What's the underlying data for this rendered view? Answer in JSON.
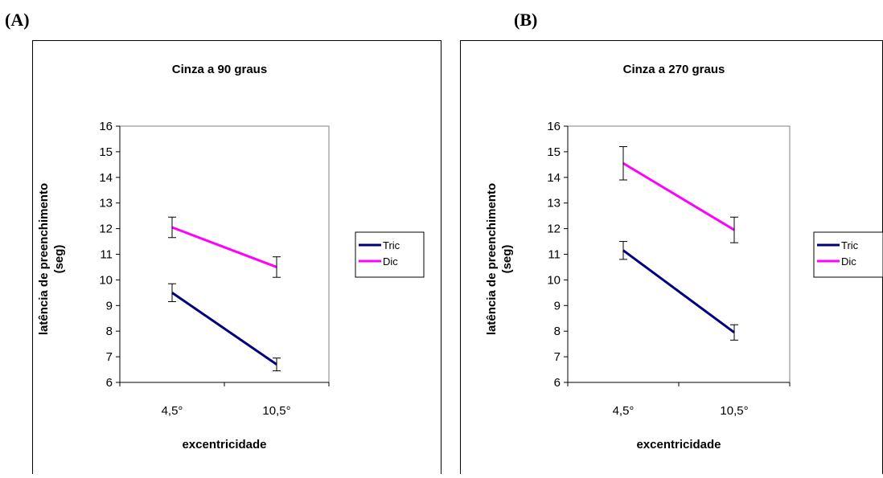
{
  "panels": [
    {
      "letter": "(A)"
    },
    {
      "letter": "(B)"
    }
  ],
  "chart_data": [
    {
      "type": "line",
      "title": "Cinza a 90 graus",
      "xlabel": "excentricidade",
      "ylabel_line1": "latência de preenchimento",
      "ylabel_line2": "(seg)",
      "categories": [
        "4,5°",
        "10,5°"
      ],
      "ylim": [
        6,
        16
      ],
      "yticks": [
        "6",
        "7",
        "8",
        "9",
        "10",
        "11",
        "12",
        "13",
        "14",
        "15",
        "16"
      ],
      "legend_position": "right",
      "series": [
        {
          "name": "Tric",
          "color": "#00007f",
          "values": [
            9.5,
            6.7
          ],
          "errors": [
            0.35,
            0.25
          ]
        },
        {
          "name": "Dic",
          "color": "#ff00ff",
          "values": [
            12.05,
            10.5
          ],
          "errors": [
            0.4,
            0.4
          ]
        }
      ]
    },
    {
      "type": "line",
      "title": "Cinza a 270 graus",
      "xlabel": "excentricidade",
      "ylabel_line1": "latência de preenchimento",
      "ylabel_line2": "(seg)",
      "categories": [
        "4,5°",
        "10,5°"
      ],
      "ylim": [
        6,
        16
      ],
      "yticks": [
        "6",
        "7",
        "8",
        "9",
        "10",
        "11",
        "12",
        "13",
        "14",
        "15",
        "16"
      ],
      "legend_position": "right",
      "series": [
        {
          "name": "Tric",
          "color": "#00007f",
          "values": [
            11.15,
            7.95
          ],
          "errors": [
            0.35,
            0.3
          ]
        },
        {
          "name": "Dic",
          "color": "#ff00ff",
          "values": [
            14.55,
            11.95
          ],
          "errors": [
            0.65,
            0.5
          ]
        }
      ]
    }
  ]
}
